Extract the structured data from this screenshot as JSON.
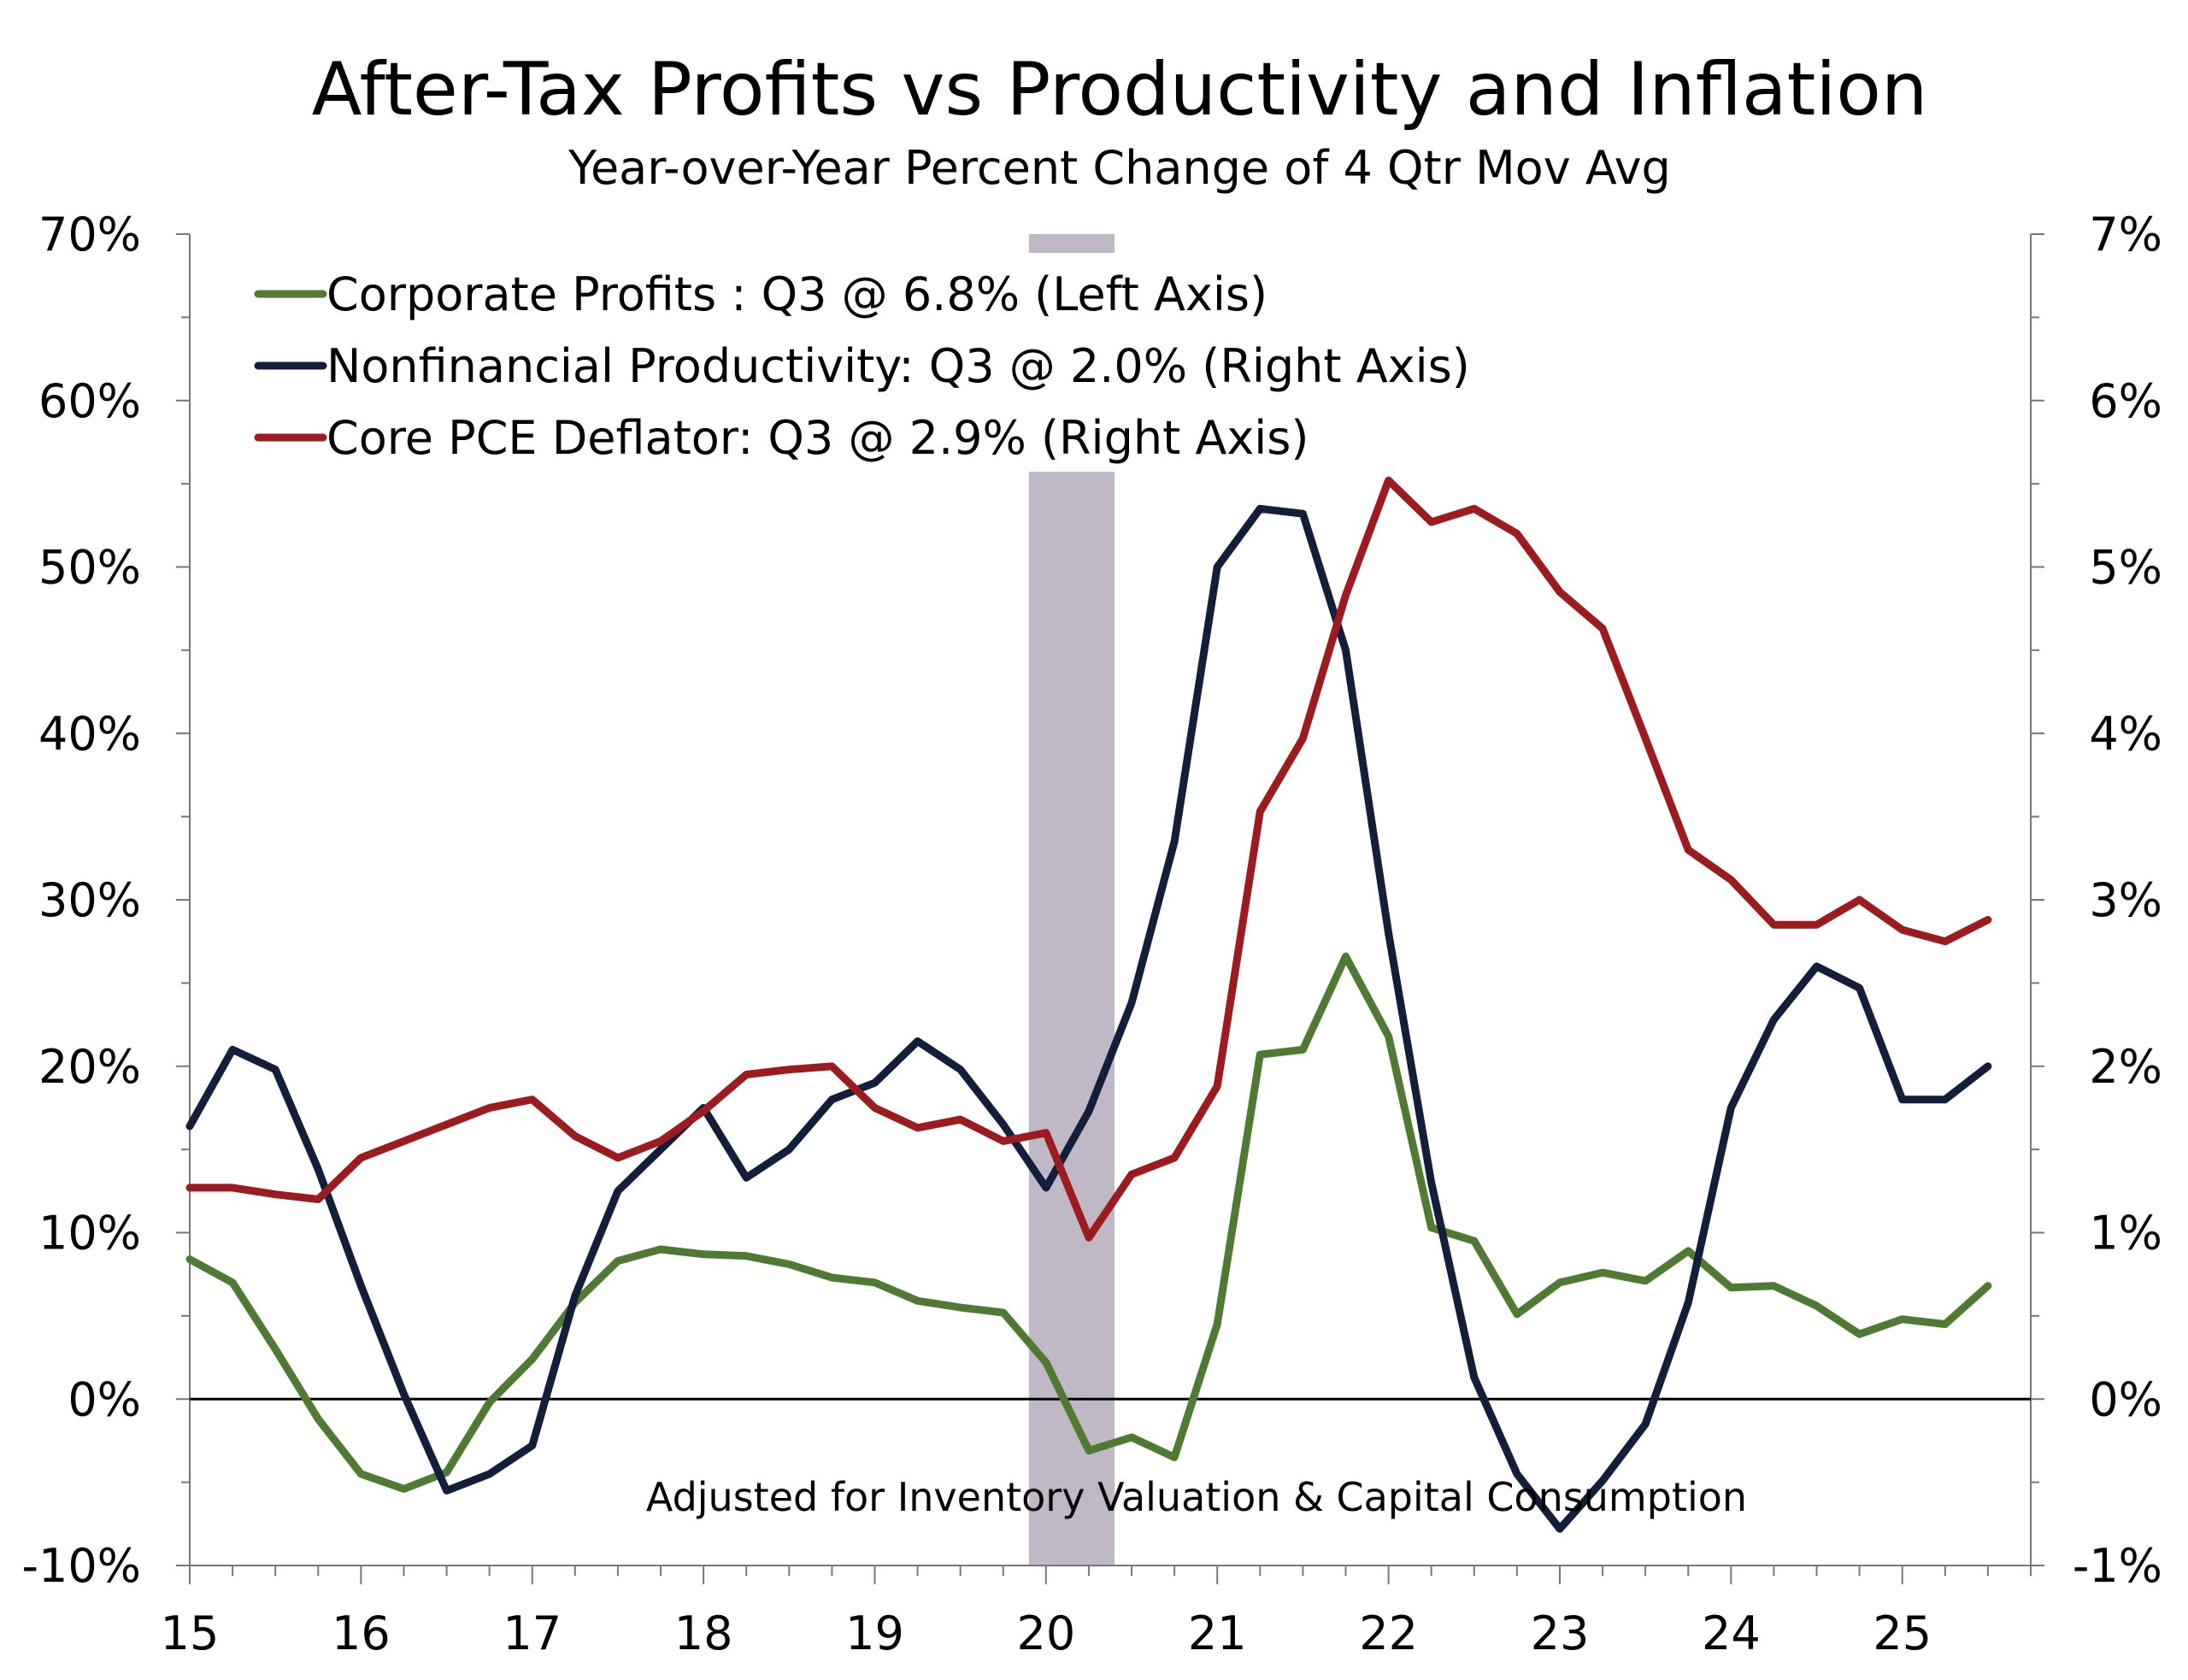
{
  "title": "After-Tax Profits vs Productivity and Inflation",
  "subtitle": "Year-over-Year Percent Change of 4 Qtr Mov Avg",
  "colors": {
    "profits": "#4f7a32",
    "productivity": "#131f3a",
    "pce": "#9b1b1e",
    "recession": "#c0b8c6",
    "axis": "#777777",
    "zero_line": "#000000"
  },
  "chart_data": {
    "type": "line",
    "x_tick_labels": [
      "15",
      "16",
      "17",
      "18",
      "19",
      "20",
      "21",
      "22",
      "23",
      "24",
      "25"
    ],
    "x_tick_years": [
      2015,
      2016,
      2017,
      2018,
      2019,
      2020,
      2021,
      2022,
      2023,
      2024,
      2025
    ],
    "x_range": [
      2015.0,
      2025.75
    ],
    "left_axis": {
      "ylim": [
        -10,
        70
      ],
      "ticks": [
        -10,
        0,
        10,
        20,
        30,
        40,
        50,
        60,
        70
      ],
      "tick_labels": [
        "-10%",
        "0%",
        "10%",
        "20%",
        "30%",
        "40%",
        "50%",
        "60%",
        "70%"
      ]
    },
    "right_axis": {
      "ylim": [
        -1,
        7
      ],
      "ticks": [
        -1,
        0,
        1,
        2,
        3,
        4,
        5,
        6,
        7
      ],
      "tick_labels": [
        "-1%",
        "0%",
        "1%",
        "2%",
        "3%",
        "4%",
        "5%",
        "6%",
        "7%"
      ]
    },
    "recession_shading": [
      2019.9,
      2020.4
    ],
    "annotation": "Adjusted for Inventory Valuation & Capital Consumption",
    "legend_position": "top-left",
    "series": [
      {
        "name": "Corporate Profits : Q3 @ 6.8% (Left Axis)",
        "key": "profits",
        "axis": "left",
        "x": [
          2015.0,
          2015.25,
          2015.5,
          2015.75,
          2016.0,
          2016.25,
          2016.5,
          2016.75,
          2017.0,
          2017.25,
          2017.5,
          2017.75,
          2018.0,
          2018.25,
          2018.5,
          2018.75,
          2019.0,
          2019.25,
          2019.5,
          2019.75,
          2020.0,
          2020.25,
          2020.5,
          2020.75,
          2021.0,
          2021.25,
          2021.5,
          2021.75,
          2022.0,
          2022.25,
          2022.5,
          2022.75,
          2023.0,
          2023.25,
          2023.5,
          2023.75,
          2024.0,
          2024.25,
          2024.5,
          2024.75,
          2025.0,
          2025.25,
          2025.5
        ],
        "y": [
          8.4,
          7.0,
          3.0,
          -1.2,
          -4.5,
          -5.4,
          -4.4,
          -0.2,
          2.4,
          5.8,
          8.3,
          9.0,
          8.7,
          8.6,
          8.1,
          7.3,
          7.0,
          5.9,
          5.5,
          5.2,
          2.2,
          -3.1,
          -2.3,
          -3.5,
          4.5,
          20.7,
          21.0,
          26.6,
          21.8,
          10.3,
          9.5,
          5.1,
          7.0,
          7.6,
          7.1,
          8.9,
          6.7,
          6.8,
          5.6,
          3.9,
          4.8,
          4.5,
          6.8
        ]
      },
      {
        "name": "Nonfinancial Productivity: Q3 @ 2.0% (Right Axis)",
        "key": "productivity",
        "axis": "right",
        "x": [
          2015.0,
          2015.25,
          2015.5,
          2015.75,
          2016.0,
          2016.25,
          2016.5,
          2016.75,
          2017.0,
          2017.25,
          2017.5,
          2017.75,
          2018.0,
          2018.25,
          2018.5,
          2018.75,
          2019.0,
          2019.25,
          2019.5,
          2019.75,
          2020.0,
          2020.25,
          2020.5,
          2020.75,
          2021.0,
          2021.25,
          2021.5,
          2021.75,
          2022.0,
          2022.25,
          2022.5,
          2022.75,
          2023.0,
          2023.25,
          2023.5,
          2023.75,
          2024.0,
          2024.25,
          2024.5,
          2024.75,
          2025.0,
          2025.25,
          2025.5
        ],
        "y": [
          1.64,
          2.1,
          1.98,
          1.38,
          0.68,
          0.03,
          -0.55,
          -0.45,
          -0.28,
          0.62,
          1.25,
          1.5,
          1.75,
          1.33,
          1.5,
          1.8,
          1.9,
          2.15,
          1.98,
          1.65,
          1.27,
          1.73,
          2.38,
          3.35,
          5.0,
          5.35,
          5.32,
          4.5,
          2.8,
          1.3,
          0.13,
          -0.45,
          -0.78,
          -0.49,
          -0.15,
          0.58,
          1.75,
          2.28,
          2.6,
          2.47,
          1.8,
          1.8,
          2.0
        ]
      },
      {
        "name": "Core PCE Deflator: Q3 @ 2.9% (Right Axis)",
        "key": "pce",
        "axis": "right",
        "x": [
          2015.0,
          2015.25,
          2015.5,
          2015.75,
          2016.0,
          2016.25,
          2016.5,
          2016.75,
          2017.0,
          2017.25,
          2017.5,
          2017.75,
          2018.0,
          2018.25,
          2018.5,
          2018.75,
          2019.0,
          2019.25,
          2019.5,
          2019.75,
          2020.0,
          2020.25,
          2020.5,
          2020.75,
          2021.0,
          2021.25,
          2021.5,
          2021.75,
          2022.0,
          2022.25,
          2022.5,
          2022.75,
          2023.0,
          2023.25,
          2023.5,
          2023.75,
          2024.0,
          2024.25,
          2024.5,
          2024.75,
          2025.0,
          2025.25,
          2025.5
        ],
        "y": [
          1.27,
          1.27,
          1.23,
          1.2,
          1.45,
          1.55,
          1.65,
          1.75,
          1.8,
          1.58,
          1.45,
          1.55,
          1.73,
          1.95,
          1.98,
          2.0,
          1.75,
          1.63,
          1.68,
          1.55,
          1.6,
          0.97,
          1.35,
          1.45,
          1.88,
          3.53,
          3.97,
          4.83,
          5.52,
          5.27,
          5.35,
          5.2,
          4.85,
          4.63,
          3.97,
          3.3,
          3.12,
          2.85,
          2.85,
          3.0,
          2.82,
          2.75,
          2.88
        ]
      }
    ]
  }
}
